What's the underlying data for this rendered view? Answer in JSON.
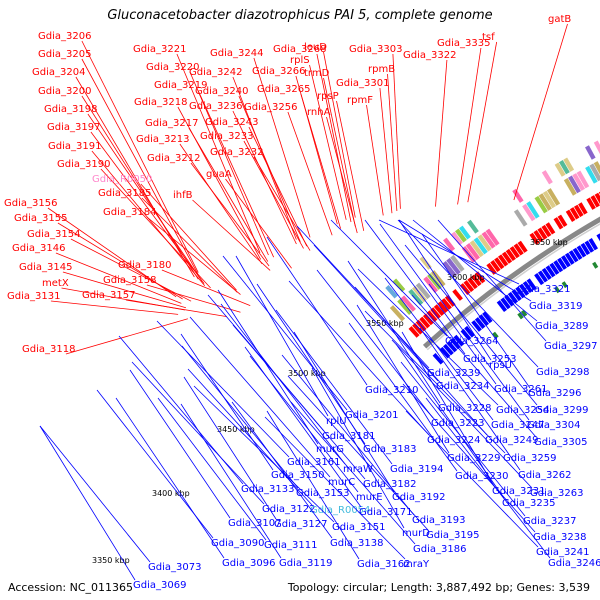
{
  "title": "Gluconacetobacter diazotrophicus PAI 5, complete genome",
  "footer": {
    "accession": "Accession: NC_011365",
    "summary": "Topology: circular; Length: 3,887,492 bp; Genes: 3,539"
  },
  "colors": {
    "forward": "#ff0000",
    "reverse": "#0000ff",
    "rna_label": "#ff88cc",
    "rna_label_rev": "#44bbdd",
    "backbone": "#888888",
    "tick_dot": "#228833"
  },
  "ticks": [
    "3650 kbp",
    "3600 kbp",
    "3550 kbp",
    "3500 kbp",
    "3450 kbp",
    "3400 kbp",
    "3350 kbp"
  ],
  "forward_labels": [
    "gatB",
    "tsf",
    "Gdia_3335",
    "Gdia_3322",
    "Gdia_3303",
    "rpmB",
    "Gdia_3301",
    "rpmF",
    "leuD",
    "rplS",
    "Gdia_3268",
    "Gdia_3266",
    "trmD",
    "Gdia_3265",
    "rpsP",
    "rnhA",
    "Gdia_3256",
    "Gdia_3244",
    "Gdia_3242",
    "Gdia_3240",
    "Gdia_3236",
    "Gdia_3243",
    "Gdia_3233",
    "Gdia_3232",
    "Gdia_3221",
    "Gdia_3220",
    "Gdia_3219",
    "Gdia_3218",
    "Gdia_3217",
    "Gdia_3213",
    "Gdia_3212",
    "guaA",
    "ihfB",
    "Gdia_3206",
    "Gdia_3205",
    "Gdia_3204",
    "Gdia_3200",
    "Gdia_3198",
    "Gdia_3197",
    "Gdia_3191",
    "Gdia_3190",
    "Gdia_R0050",
    "Gdia_3185",
    "Gdia_3184",
    "Gdia_3156",
    "Gdia_3155",
    "Gdia_3154",
    "Gdia_3146",
    "Gdia_3180",
    "Gdia_3145",
    "metX",
    "Gdia_3158",
    "Gdia_3131",
    "Gdia_3157",
    "Gdia_3118"
  ],
  "reverse_labels": [
    "Gdia_3321",
    "Gdia_3319",
    "Gdia_3289",
    "Gdia_3264",
    "Gdia_3297",
    "Gdia_3253",
    "rpsU",
    "Gdia_3298",
    "Gdia_3239",
    "Gdia_3234",
    "Gdia_3261",
    "Gdia_3296",
    "Gdia_3210",
    "Gdia_3228",
    "Gdia_3254",
    "Gdia_3299",
    "Gdia_3201",
    "Gdia_3223",
    "Gdia_3247",
    "Gdia_3304",
    "rplU",
    "Gdia_3224",
    "Gdia_3249",
    "Gdia_3305",
    "Gdia_3181",
    "Gdia_3183",
    "murG",
    "Gdia_3229",
    "Gdia_3259",
    "Gdia_3161",
    "mraW",
    "Gdia_3194",
    "Gdia_3230",
    "Gdia_3262",
    "Gdia_3150",
    "murC",
    "Gdia_3182",
    "Gdia_3133",
    "Gdia_3153",
    "murE",
    "Gdia_3192",
    "Gdia_3231",
    "Gdia_3263",
    "Gdia_3122",
    "Gdia_R0054",
    "Gdia_3171",
    "Gdia_3235",
    "Gdia_3107",
    "Gdia_3127",
    "Gdia_3151",
    "Gdia_3193",
    "Gdia_3237",
    "Gdia_3090",
    "Gdia_3111",
    "Gdia_3138",
    "murD",
    "Gdia_3195",
    "Gdia_3238",
    "Gdia_3186",
    "Gdia_3073",
    "Gdia_3096",
    "Gdia_3119",
    "Gdia_3162",
    "mraY",
    "Gdia_3241",
    "Gdia_3246",
    "Gdia_3069"
  ]
}
